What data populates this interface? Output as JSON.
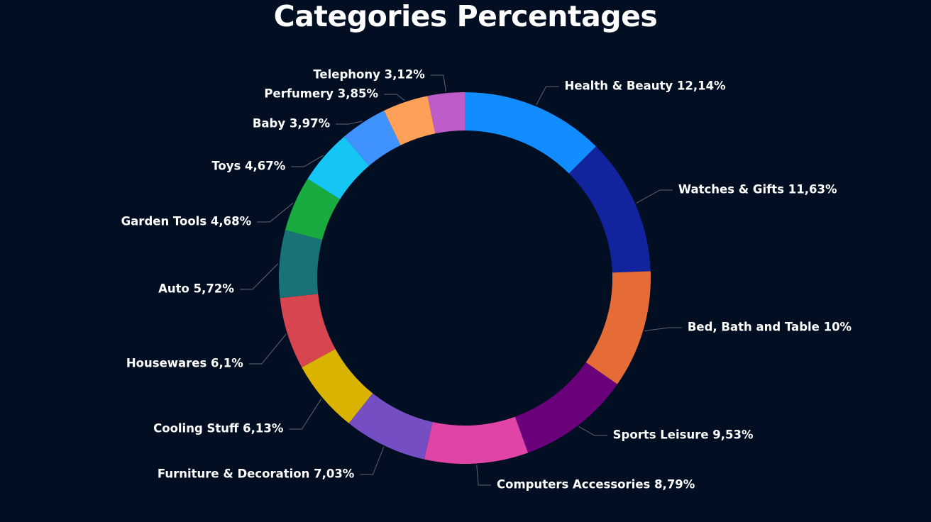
{
  "chart_data": {
    "type": "pie",
    "variant": "donut",
    "title": "Categories Percentages",
    "unit": "%",
    "categories": [
      "Health & Beauty",
      "Watches & Gifts",
      "Bed, Bath and Table",
      "Sports Leisure",
      "Computers Accessories",
      "Furniture & Decoration",
      "Cooling Stuff",
      "Housewares",
      "Auto",
      "Garden Tools",
      "Toys",
      "Baby",
      "Perfumery",
      "Telephony"
    ],
    "values": [
      12.14,
      11.63,
      10,
      9.53,
      8.79,
      7.03,
      6.13,
      6.1,
      5.72,
      4.68,
      4.67,
      3.97,
      3.85,
      3.12
    ],
    "labels": [
      "Health & Beauty 12,14%",
      "Watches & Gifts 11,63%",
      "Bed, Bath and Table 10%",
      "Sports Leisure 9,53%",
      "Computers Accessories 8,79%",
      "Furniture & Decoration 7,03%",
      "Cooling Stuff 6,13%",
      "Housewares 6,1%",
      "Auto 5,72%",
      "Garden Tools 4,68%",
      "Toys 4,67%",
      "Baby 3,97%",
      "Perfumery 3,85%",
      "Telephony 3,12%"
    ],
    "colors": [
      "#118dff",
      "#12239e",
      "#e66c37",
      "#6b007b",
      "#e044a7",
      "#744ec2",
      "#d9b300",
      "#d64550",
      "#197278",
      "#1aab40",
      "#15c6f4",
      "#4092ff",
      "#ffa058",
      "#be5dc9",
      "#f472d0"
    ],
    "legend": "none",
    "label_position": "outside"
  }
}
